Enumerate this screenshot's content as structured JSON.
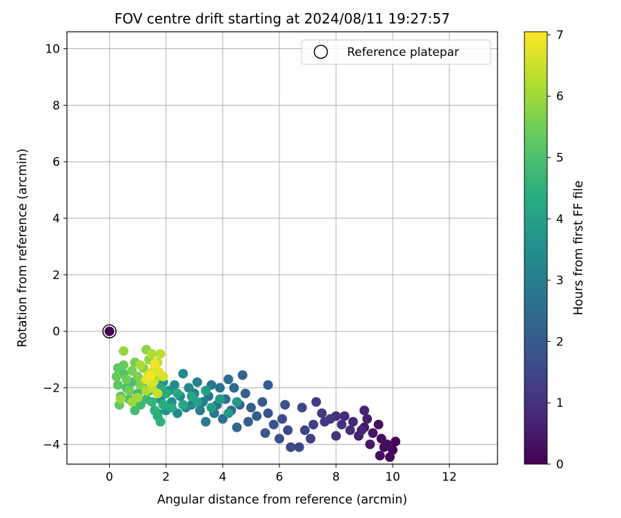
{
  "chart_data": {
    "type": "scatter",
    "title": "FOV centre drift starting at 2024/08/11 19:27:57",
    "xlabel": "Angular distance from reference (arcmin)",
    "ylabel": "Rotation from reference (arcmin)",
    "xlim": [
      -1.5,
      13.7
    ],
    "ylim": [
      -4.7,
      10.6
    ],
    "xticks": [
      0,
      2,
      4,
      6,
      8,
      10,
      12
    ],
    "yticks": [
      -4,
      -2,
      0,
      2,
      4,
      6,
      8,
      10
    ],
    "xtick_labels": [
      "0",
      "2",
      "4",
      "6",
      "8",
      "10",
      "12"
    ],
    "ytick_labels": [
      "−4",
      "−2",
      "0",
      "2",
      "4",
      "6",
      "8",
      "10"
    ],
    "grid": true,
    "legend": {
      "position": "top-right",
      "entries": [
        "Reference platepar"
      ]
    },
    "colormap": "viridis",
    "colorbar": {
      "label": "Hours from first FF file",
      "range": [
        0,
        7.05
      ],
      "ticks": [
        0,
        1,
        2,
        3,
        4,
        5,
        6,
        7
      ],
      "tick_labels": [
        "0",
        "1",
        "2",
        "3",
        "4",
        "5",
        "6",
        "7"
      ]
    },
    "reference_point": {
      "x": 0,
      "y": 0,
      "hours": 0
    },
    "series": [
      {
        "description": "FOV centre per FF file, colored by hours",
        "points": [
          [
            10.0,
            -4.2,
            0.05
          ],
          [
            10.1,
            -3.9,
            0.08
          ],
          [
            9.7,
            -4.1,
            0.12
          ],
          [
            9.9,
            -4.45,
            0.15
          ],
          [
            9.6,
            -3.8,
            0.2
          ],
          [
            9.55,
            -4.4,
            0.25
          ],
          [
            9.8,
            -4.0,
            0.3
          ],
          [
            9.5,
            -3.3,
            0.35
          ],
          [
            9.3,
            -3.6,
            0.4
          ],
          [
            9.2,
            -4.0,
            0.45
          ],
          [
            9.0,
            -3.4,
            0.5
          ],
          [
            9.1,
            -3.1,
            0.55
          ],
          [
            8.8,
            -3.7,
            0.6
          ],
          [
            9.0,
            -2.8,
            0.7
          ],
          [
            8.9,
            -3.5,
            0.75
          ],
          [
            8.6,
            -3.2,
            0.8
          ],
          [
            8.3,
            -3.0,
            0.85
          ],
          [
            8.5,
            -3.5,
            0.9
          ],
          [
            8.0,
            -3.0,
            0.95
          ],
          [
            8.2,
            -3.3,
            1.0
          ],
          [
            8.0,
            -3.7,
            1.05
          ],
          [
            7.8,
            -3.1,
            1.1
          ],
          [
            7.6,
            -3.2,
            1.15
          ],
          [
            7.5,
            -2.9,
            1.2
          ],
          [
            7.3,
            -2.5,
            1.25
          ],
          [
            7.2,
            -3.3,
            1.3
          ],
          [
            7.1,
            -3.8,
            1.35
          ],
          [
            6.9,
            -3.5,
            1.4
          ],
          [
            6.8,
            -2.7,
            1.45
          ],
          [
            6.7,
            -4.1,
            1.5
          ],
          [
            6.4,
            -4.1,
            1.55
          ],
          [
            6.3,
            -3.5,
            1.6
          ],
          [
            6.1,
            -3.1,
            1.65
          ],
          [
            6.0,
            -3.8,
            1.7
          ],
          [
            6.2,
            -2.6,
            1.75
          ],
          [
            5.8,
            -3.3,
            1.8
          ],
          [
            5.6,
            -2.9,
            1.85
          ],
          [
            5.5,
            -3.6,
            1.9
          ],
          [
            5.4,
            -2.5,
            1.95
          ],
          [
            5.2,
            -3.0,
            2.0
          ],
          [
            5.6,
            -1.9,
            2.05
          ],
          [
            5.0,
            -2.7,
            2.1
          ],
          [
            4.9,
            -3.2,
            2.15
          ],
          [
            4.8,
            -2.2,
            2.2
          ],
          [
            4.7,
            -1.55,
            2.25
          ],
          [
            4.6,
            -2.6,
            2.3
          ],
          [
            4.5,
            -3.4,
            2.35
          ],
          [
            4.4,
            -2.0,
            2.4
          ],
          [
            4.3,
            -2.8,
            2.45
          ],
          [
            4.2,
            -1.7,
            2.5
          ],
          [
            4.1,
            -2.4,
            2.55
          ],
          [
            4.0,
            -3.1,
            2.6
          ],
          [
            3.9,
            -2.0,
            2.65
          ],
          [
            3.8,
            -2.6,
            2.7
          ],
          [
            3.7,
            -2.9,
            2.75
          ],
          [
            3.6,
            -1.9,
            2.8
          ],
          [
            3.5,
            -2.3,
            2.85
          ],
          [
            3.4,
            -3.2,
            2.9
          ],
          [
            3.3,
            -2.5,
            2.95
          ],
          [
            3.2,
            -2.8,
            3.0
          ],
          [
            3.1,
            -1.8,
            3.05
          ],
          [
            3.0,
            -2.2,
            3.1
          ],
          [
            2.9,
            -2.6,
            3.15
          ],
          [
            2.8,
            -2.0,
            3.2
          ],
          [
            2.7,
            -2.7,
            3.25
          ],
          [
            2.6,
            -1.5,
            3.3
          ],
          [
            2.5,
            -2.3,
            3.35
          ],
          [
            2.4,
            -2.9,
            3.4
          ],
          [
            2.3,
            -1.9,
            3.45
          ],
          [
            2.2,
            -2.5,
            3.5
          ],
          [
            2.1,
            -2.1,
            3.55
          ],
          [
            2.0,
            -2.8,
            3.6
          ],
          [
            1.9,
            -1.8,
            3.65
          ],
          [
            1.8,
            -2.4,
            3.7
          ],
          [
            1.7,
            -2.9,
            3.75
          ],
          [
            4.5,
            -2.5,
            3.8
          ],
          [
            4.2,
            -2.9,
            3.85
          ],
          [
            3.9,
            -2.4,
            3.9
          ],
          [
            3.6,
            -2.7,
            3.95
          ],
          [
            3.4,
            -2.1,
            4.0
          ],
          [
            3.1,
            -2.5,
            4.05
          ],
          [
            2.9,
            -2.3,
            4.1
          ],
          [
            2.6,
            -2.6,
            4.15
          ],
          [
            2.4,
            -2.2,
            4.2
          ],
          [
            2.2,
            -2.7,
            4.25
          ],
          [
            2.0,
            -2.2,
            4.3
          ],
          [
            1.8,
            -2.0,
            4.35
          ],
          [
            1.9,
            -2.6,
            4.4
          ],
          [
            1.7,
            -3.0,
            4.45
          ],
          [
            1.8,
            -3.2,
            4.5
          ],
          [
            1.6,
            -2.8,
            4.55
          ],
          [
            1.5,
            -2.5,
            4.6
          ],
          [
            1.4,
            -2.1,
            4.65
          ],
          [
            1.3,
            -2.4,
            4.7
          ],
          [
            1.2,
            -2.0,
            4.75
          ],
          [
            1.1,
            -2.6,
            4.8
          ],
          [
            1.0,
            -2.2,
            4.85
          ],
          [
            0.9,
            -2.8,
            4.9
          ],
          [
            0.8,
            -1.8,
            4.95
          ],
          [
            0.7,
            -2.4,
            5.0
          ],
          [
            0.6,
            -2.0,
            5.05
          ],
          [
            0.5,
            -1.5,
            5.1
          ],
          [
            0.4,
            -2.3,
            5.15
          ],
          [
            0.3,
            -1.9,
            5.2
          ],
          [
            0.35,
            -2.6,
            5.25
          ],
          [
            0.3,
            -1.3,
            5.3
          ],
          [
            0.25,
            -1.6,
            5.35
          ],
          [
            0.5,
            -1.2,
            5.4
          ],
          [
            0.6,
            -1.7,
            5.45
          ],
          [
            0.7,
            -2.1,
            5.5
          ],
          [
            0.8,
            -1.4,
            5.55
          ],
          [
            0.9,
            -1.1,
            5.6
          ],
          [
            1.0,
            -1.6,
            5.65
          ],
          [
            1.1,
            -1.9,
            5.7
          ],
          [
            1.2,
            -1.3,
            5.75
          ],
          [
            1.3,
            -0.65,
            5.8
          ],
          [
            1.4,
            -1.0,
            5.85
          ],
          [
            0.5,
            -0.7,
            5.9
          ],
          [
            0.4,
            -2.4,
            5.95
          ],
          [
            0.8,
            -2.5,
            6.0
          ],
          [
            1.0,
            -2.35,
            6.05
          ],
          [
            1.1,
            -1.2,
            6.1
          ],
          [
            1.3,
            -2.1,
            6.15
          ],
          [
            1.5,
            -0.8,
            6.2
          ],
          [
            1.6,
            -1.7,
            6.25
          ],
          [
            1.7,
            -1.1,
            6.3
          ],
          [
            1.8,
            -0.8,
            6.35
          ],
          [
            1.5,
            -2.0,
            6.4
          ],
          [
            1.4,
            -1.5,
            6.45
          ],
          [
            1.7,
            -2.2,
            6.5
          ],
          [
            1.6,
            -1.3,
            6.55
          ],
          [
            1.9,
            -1.6,
            6.6
          ],
          [
            1.5,
            -1.8,
            6.65
          ],
          [
            1.75,
            -1.45,
            6.7
          ],
          [
            1.3,
            -1.7,
            6.8
          ],
          [
            1.6,
            -1.15,
            6.9
          ],
          [
            1.45,
            -1.55,
            7.0
          ]
        ]
      }
    ]
  }
}
